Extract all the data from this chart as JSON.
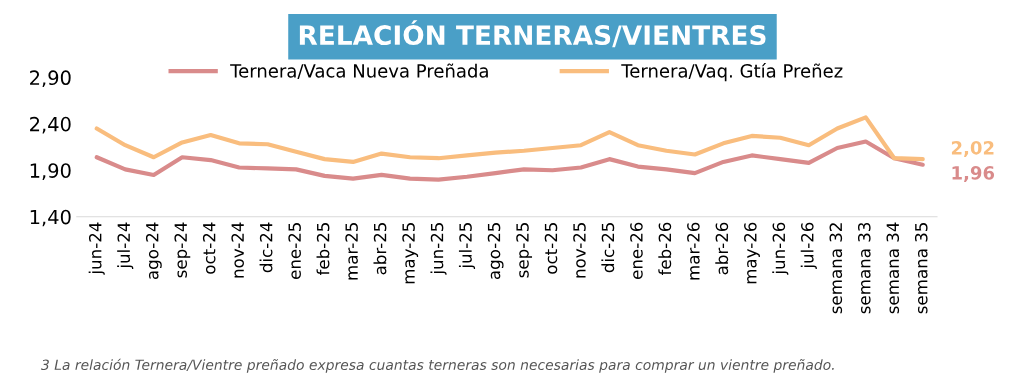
{
  "chart_data": {
    "type": "line",
    "title": "RELACIÓN TERNERAS/VIENTRES",
    "categories": [
      "jun-24",
      "jul-24",
      "ago-24",
      "sep-24",
      "oct-24",
      "nov-24",
      "dic-24",
      "ene-25",
      "feb-25",
      "mar-25",
      "abr-25",
      "may-25",
      "jun-25",
      "jul-25",
      "ago-25",
      "sep-25",
      "oct-25",
      "nov-25",
      "dic-25",
      "ene-26",
      "feb-26",
      "mar-26",
      "abr-26",
      "may-26",
      "jun-26",
      "jul-26",
      "semana 32",
      "semana 33",
      "semana 34",
      "semana 35"
    ],
    "series": [
      {
        "name": "Ternera/Vaca Nueva Preñada",
        "color": "#d98b8b",
        "values": [
          2.04,
          1.91,
          1.85,
          2.04,
          2.01,
          1.93,
          1.92,
          1.91,
          1.84,
          1.81,
          1.85,
          1.81,
          1.8,
          1.83,
          1.87,
          1.91,
          1.9,
          1.93,
          2.02,
          1.94,
          1.91,
          1.87,
          1.99,
          2.06,
          2.02,
          1.98,
          2.14,
          2.21,
          2.03,
          1.96
        ],
        "value_labels": [
          null,
          null,
          null,
          null,
          null,
          null,
          null,
          null,
          null,
          null,
          null,
          null,
          null,
          null,
          null,
          null,
          null,
          null,
          null,
          null,
          null,
          null,
          null,
          null,
          null,
          null,
          null,
          null,
          null,
          "1,96"
        ]
      },
      {
        "name": "Ternera/Vaq. Gtía Preñez",
        "color": "#f9bd7e",
        "values": [
          2.35,
          2.17,
          2.04,
          2.2,
          2.28,
          2.19,
          2.18,
          2.1,
          2.02,
          1.99,
          2.08,
          2.04,
          2.03,
          2.06,
          2.09,
          2.11,
          2.14,
          2.17,
          2.31,
          2.17,
          2.11,
          2.07,
          2.19,
          2.27,
          2.25,
          2.17,
          2.35,
          2.47,
          2.03,
          2.02
        ],
        "value_labels": [
          null,
          null,
          null,
          null,
          null,
          null,
          null,
          null,
          null,
          null,
          null,
          null,
          null,
          null,
          null,
          null,
          null,
          null,
          null,
          null,
          null,
          null,
          null,
          null,
          null,
          null,
          null,
          null,
          null,
          "2,02"
        ]
      }
    ],
    "ylim": [
      1.4,
      2.9
    ],
    "yticks": [
      {
        "value": 1.4,
        "label": "1,40"
      },
      {
        "value": 1.9,
        "label": "1,90"
      },
      {
        "value": 2.4,
        "label": "2,40"
      },
      {
        "value": 2.9,
        "label": "2,90"
      }
    ],
    "grid": false,
    "legend": "top",
    "marker": "none",
    "line_style": "solid",
    "annotations": [
      "3 La relación Ternera/Vientre preñado expresa cuantas terneras son necesarias para comprar un vientre preñado."
    ]
  }
}
